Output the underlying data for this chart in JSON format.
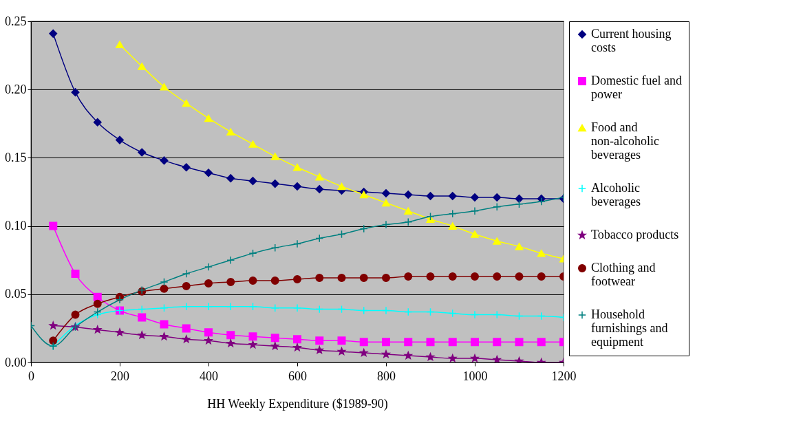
{
  "chart_data": {
    "type": "line",
    "xlabel": "HH Weekly Expenditure ($1989-90)",
    "x": [
      0,
      50,
      100,
      150,
      200,
      250,
      300,
      350,
      400,
      450,
      500,
      550,
      600,
      650,
      700,
      750,
      800,
      850,
      900,
      950,
      1000,
      1050,
      1100,
      1150,
      1200
    ],
    "series": [
      {
        "name": "Current housing costs",
        "color": "#000080",
        "marker": "diamond",
        "values": [
          null,
          0.241,
          0.198,
          0.176,
          0.163,
          0.154,
          0.148,
          0.143,
          0.139,
          0.135,
          0.133,
          0.131,
          0.129,
          0.127,
          0.126,
          0.125,
          0.124,
          0.123,
          0.122,
          0.122,
          0.121,
          0.121,
          0.12,
          0.12,
          0.12
        ]
      },
      {
        "name": "Domestic fuel and power",
        "color": "#ff00ff",
        "marker": "square",
        "values": [
          null,
          0.1,
          0.065,
          0.048,
          0.038,
          0.033,
          0.028,
          0.025,
          0.022,
          0.02,
          0.019,
          0.018,
          0.017,
          0.016,
          0.016,
          0.015,
          0.015,
          0.015,
          0.015,
          0.015,
          0.015,
          0.015,
          0.015,
          0.015,
          0.015
        ]
      },
      {
        "name": "Food and non-alcoholic beverages",
        "color": "#ffff00",
        "marker": "triangle",
        "values": [
          null,
          null,
          null,
          null,
          0.233,
          0.217,
          0.202,
          0.19,
          0.179,
          0.169,
          0.16,
          0.151,
          0.143,
          0.136,
          0.129,
          0.123,
          0.117,
          0.111,
          0.105,
          0.1,
          0.094,
          0.089,
          0.085,
          0.08,
          0.076
        ]
      },
      {
        "name": "Alcoholic beverages",
        "color": "#00ffff",
        "marker": "cross",
        "values": [
          null,
          0.012,
          0.027,
          0.035,
          0.038,
          0.039,
          0.04,
          0.041,
          0.041,
          0.041,
          0.041,
          0.04,
          0.04,
          0.039,
          0.039,
          0.038,
          0.038,
          0.037,
          0.037,
          0.036,
          0.035,
          0.035,
          0.034,
          0.034,
          0.033
        ]
      },
      {
        "name": "Tobacco products",
        "color": "#800080",
        "marker": "star",
        "values": [
          null,
          0.027,
          0.026,
          0.024,
          0.022,
          0.02,
          0.019,
          0.017,
          0.016,
          0.014,
          0.013,
          0.012,
          0.011,
          0.009,
          0.008,
          0.007,
          0.006,
          0.005,
          0.004,
          0.003,
          0.003,
          0.002,
          0.001,
          0.0,
          0.0
        ]
      },
      {
        "name": "Clothing and footwear",
        "color": "#800000",
        "marker": "circle",
        "values": [
          null,
          0.016,
          0.035,
          0.043,
          0.048,
          0.052,
          0.054,
          0.056,
          0.058,
          0.059,
          0.06,
          0.06,
          0.061,
          0.062,
          0.062,
          0.062,
          0.062,
          0.063,
          0.063,
          0.063,
          0.063,
          0.063,
          0.063,
          0.063,
          0.063
        ]
      },
      {
        "name": "Household furnishings and equipment",
        "color": "#008080",
        "marker": "cross",
        "values": [
          0.027,
          0.012,
          0.026,
          0.037,
          0.046,
          0.053,
          0.059,
          0.065,
          0.07,
          0.075,
          0.08,
          0.084,
          0.087,
          0.091,
          0.094,
          0.098,
          0.101,
          0.103,
          0.107,
          0.109,
          0.111,
          0.114,
          0.116,
          0.118,
          0.121
        ]
      }
    ],
    "xlim": [
      0,
      1200
    ],
    "xticks": [
      0,
      200,
      400,
      600,
      800,
      1000,
      1200
    ],
    "ylim": [
      0,
      0.25
    ],
    "yticks": [
      {
        "value": 0,
        "label": "0.00"
      },
      0.05,
      {
        "value": 0.1,
        "label": "0.10"
      },
      0.15,
      {
        "value": 0.2,
        "label": "0.20"
      },
      0.25
    ],
    "grid": "y",
    "legend": "right"
  }
}
